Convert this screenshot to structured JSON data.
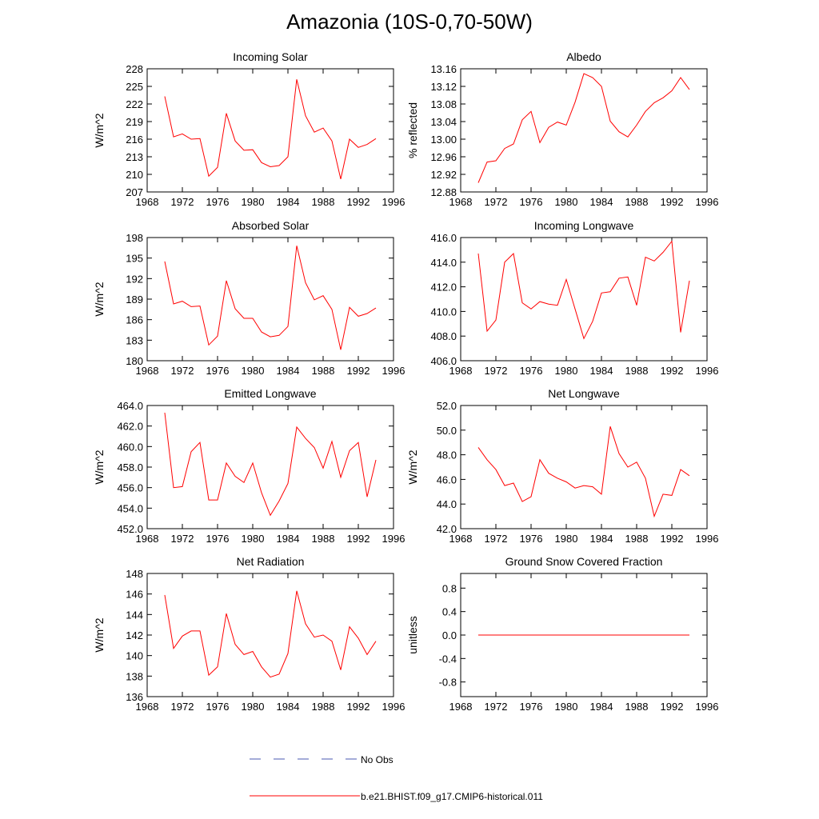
{
  "page_title": "Amazonia (10S-0,70-50W)",
  "legend": [
    {
      "label": "No Obs",
      "color": "#4a5ab0",
      "style": "dashed"
    },
    {
      "label": "b.e21.BHIST.f09_g17.CMIP6-historical.011",
      "color": "#ff0000",
      "style": "solid"
    }
  ],
  "chart_data": [
    {
      "type": "line",
      "title": "Incoming Solar",
      "ylabel": "W/m^2",
      "xlim": [
        1968,
        1996
      ],
      "xticks": [
        1968,
        1972,
        1976,
        1980,
        1984,
        1988,
        1992,
        1996
      ],
      "ylim": [
        207,
        228
      ],
      "yticks": [
        207,
        210,
        213,
        216,
        219,
        222,
        225,
        228
      ],
      "ytick_labels": [
        "207",
        "210",
        "213",
        "216",
        "219",
        "222",
        "225",
        "228"
      ],
      "x": [
        1970,
        1971,
        1972,
        1973,
        1974,
        1975,
        1976,
        1977,
        1978,
        1979,
        1980,
        1981,
        1982,
        1983,
        1984,
        1985,
        1986,
        1987,
        1988,
        1989,
        1990,
        1991,
        1992,
        1993,
        1994
      ],
      "series": [
        {
          "name": "b.e21.BHIST.f09_g17.CMIP6-historical.011",
          "color": "#ff0000",
          "values": [
            223.3,
            216.4,
            216.9,
            216.0,
            216.1,
            209.7,
            211.2,
            220.4,
            215.7,
            214.1,
            214.2,
            212.0,
            211.3,
            211.5,
            213.0,
            226.2,
            220.0,
            217.2,
            217.9,
            215.7,
            209.2,
            216.0,
            214.6,
            215.1,
            216.1
          ]
        }
      ]
    },
    {
      "type": "line",
      "title": "Albedo",
      "ylabel": "% reflected",
      "xlim": [
        1968,
        1996
      ],
      "xticks": [
        1968,
        1972,
        1976,
        1980,
        1984,
        1988,
        1992,
        1996
      ],
      "ylim": [
        12.88,
        13.16
      ],
      "yticks": [
        12.88,
        12.92,
        12.96,
        13.0,
        13.04,
        13.08,
        13.12,
        13.16
      ],
      "ytick_labels": [
        "12.88",
        "12.92",
        "12.96",
        "13.00",
        "13.04",
        "13.08",
        "13.12",
        "13.16"
      ],
      "x": [
        1970,
        1971,
        1972,
        1973,
        1974,
        1975,
        1976,
        1977,
        1978,
        1979,
        1980,
        1981,
        1982,
        1983,
        1984,
        1985,
        1986,
        1987,
        1988,
        1989,
        1990,
        1991,
        1992,
        1993,
        1994
      ],
      "series": [
        {
          "name": "b.e21.BHIST.f09_g17.CMIP6-historical.011",
          "color": "#ff0000",
          "values": [
            12.901,
            12.948,
            12.951,
            12.979,
            12.989,
            13.044,
            13.063,
            12.992,
            13.027,
            13.039,
            13.032,
            13.084,
            13.149,
            13.14,
            13.12,
            13.041,
            13.017,
            13.005,
            13.032,
            13.063,
            13.083,
            13.094,
            13.11,
            13.14,
            13.113
          ]
        }
      ]
    },
    {
      "type": "line",
      "title": "Absorbed Solar",
      "ylabel": "W/m^2",
      "xlim": [
        1968,
        1996
      ],
      "xticks": [
        1968,
        1972,
        1976,
        1980,
        1984,
        1988,
        1992,
        1996
      ],
      "ylim": [
        180,
        198
      ],
      "yticks": [
        180,
        183,
        186,
        189,
        192,
        195,
        198
      ],
      "ytick_labels": [
        "180",
        "183",
        "186",
        "189",
        "192",
        "195",
        "198"
      ],
      "x": [
        1970,
        1971,
        1972,
        1973,
        1974,
        1975,
        1976,
        1977,
        1978,
        1979,
        1980,
        1981,
        1982,
        1983,
        1984,
        1985,
        1986,
        1987,
        1988,
        1989,
        1990,
        1991,
        1992,
        1993,
        1994
      ],
      "series": [
        {
          "name": "b.e21.BHIST.f09_g17.CMIP6-historical.011",
          "color": "#ff0000",
          "values": [
            194.5,
            188.3,
            188.7,
            187.9,
            188.0,
            182.3,
            183.6,
            191.7,
            187.6,
            186.2,
            186.2,
            184.2,
            183.5,
            183.7,
            185.0,
            196.8,
            191.4,
            188.9,
            189.5,
            187.5,
            181.6,
            187.8,
            186.5,
            186.9,
            187.7
          ]
        }
      ]
    },
    {
      "type": "line",
      "title": "Incoming Longwave",
      "ylabel": "",
      "xlim": [
        1968,
        1996
      ],
      "xticks": [
        1968,
        1972,
        1976,
        1980,
        1984,
        1988,
        1992,
        1996
      ],
      "ylim": [
        406,
        416
      ],
      "yticks": [
        406,
        408,
        410,
        412,
        414,
        416
      ],
      "ytick_labels": [
        "406.0",
        "408.0",
        "410.0",
        "412.0",
        "414.0",
        "416.0"
      ],
      "x": [
        1970,
        1971,
        1972,
        1973,
        1974,
        1975,
        1976,
        1977,
        1978,
        1979,
        1980,
        1981,
        1982,
        1983,
        1984,
        1985,
        1986,
        1987,
        1988,
        1989,
        1990,
        1991,
        1992,
        1993,
        1994
      ],
      "series": [
        {
          "name": "b.e21.BHIST.f09_g17.CMIP6-historical.011",
          "color": "#ff0000",
          "values": [
            414.7,
            408.4,
            409.3,
            414.0,
            414.7,
            410.7,
            410.2,
            410.8,
            410.6,
            410.5,
            412.6,
            410.2,
            407.8,
            409.2,
            411.5,
            411.6,
            412.7,
            412.8,
            410.5,
            414.4,
            414.1,
            414.8,
            415.7,
            408.3,
            412.5
          ]
        }
      ]
    },
    {
      "type": "line",
      "title": "Emitted Longwave",
      "ylabel": "W/m^2",
      "xlim": [
        1968,
        1996
      ],
      "xticks": [
        1968,
        1972,
        1976,
        1980,
        1984,
        1988,
        1992,
        1996
      ],
      "ylim": [
        452,
        464
      ],
      "yticks": [
        452,
        454,
        456,
        458,
        460,
        462,
        464
      ],
      "ytick_labels": [
        "452.0",
        "454.0",
        "456.0",
        "458.0",
        "460.0",
        "462.0",
        "464.0"
      ],
      "x": [
        1970,
        1971,
        1972,
        1973,
        1974,
        1975,
        1976,
        1977,
        1978,
        1979,
        1980,
        1981,
        1982,
        1983,
        1984,
        1985,
        1986,
        1987,
        1988,
        1989,
        1990,
        1991,
        1992,
        1993,
        1994
      ],
      "series": [
        {
          "name": "b.e21.BHIST.f09_g17.CMIP6-historical.011",
          "color": "#ff0000",
          "values": [
            463.3,
            456.0,
            456.1,
            459.5,
            460.4,
            454.8,
            454.8,
            458.4,
            457.1,
            456.5,
            458.4,
            455.5,
            453.3,
            454.7,
            456.4,
            461.9,
            460.8,
            459.9,
            457.9,
            460.5,
            457.0,
            459.6,
            460.4,
            455.1,
            458.7
          ]
        }
      ]
    },
    {
      "type": "line",
      "title": "Net Longwave",
      "ylabel": "W/m^2",
      "xlim": [
        1968,
        1996
      ],
      "xticks": [
        1968,
        1972,
        1976,
        1980,
        1984,
        1988,
        1992,
        1996
      ],
      "ylim": [
        42,
        52
      ],
      "yticks": [
        42,
        44,
        46,
        48,
        50,
        52
      ],
      "ytick_labels": [
        "42.0",
        "44.0",
        "46.0",
        "48.0",
        "50.0",
        "52.0"
      ],
      "x": [
        1970,
        1971,
        1972,
        1973,
        1974,
        1975,
        1976,
        1977,
        1978,
        1979,
        1980,
        1981,
        1982,
        1983,
        1984,
        1985,
        1986,
        1987,
        1988,
        1989,
        1990,
        1991,
        1992,
        1993,
        1994
      ],
      "series": [
        {
          "name": "b.e21.BHIST.f09_g17.CMIP6-historical.011",
          "color": "#ff0000",
          "values": [
            48.6,
            47.6,
            46.8,
            45.5,
            45.7,
            44.2,
            44.6,
            47.6,
            46.5,
            46.1,
            45.8,
            45.3,
            45.5,
            45.4,
            44.8,
            50.3,
            48.1,
            47.0,
            47.4,
            46.1,
            43.0,
            44.8,
            44.7,
            46.8,
            46.3
          ]
        }
      ]
    },
    {
      "type": "line",
      "title": "Net Radiation",
      "ylabel": "W/m^2",
      "xlim": [
        1968,
        1996
      ],
      "xticks": [
        1968,
        1972,
        1976,
        1980,
        1984,
        1988,
        1992,
        1996
      ],
      "ylim": [
        136,
        148
      ],
      "yticks": [
        136,
        138,
        140,
        142,
        144,
        146,
        148
      ],
      "ytick_labels": [
        "136",
        "138",
        "140",
        "142",
        "144",
        "146",
        "148"
      ],
      "x": [
        1970,
        1971,
        1972,
        1973,
        1974,
        1975,
        1976,
        1977,
        1978,
        1979,
        1980,
        1981,
        1982,
        1983,
        1984,
        1985,
        1986,
        1987,
        1988,
        1989,
        1990,
        1991,
        1992,
        1993,
        1994
      ],
      "series": [
        {
          "name": "b.e21.BHIST.f09_g17.CMIP6-historical.011",
          "color": "#ff0000",
          "values": [
            145.9,
            140.7,
            141.9,
            142.4,
            142.4,
            138.1,
            138.9,
            144.1,
            141.1,
            140.1,
            140.4,
            138.9,
            137.9,
            138.2,
            140.2,
            146.3,
            143.1,
            141.8,
            142.0,
            141.4,
            138.6,
            142.8,
            141.7,
            140.1,
            141.4
          ]
        }
      ]
    },
    {
      "type": "line",
      "title": "Ground Snow Covered Fraction",
      "ylabel": "unitless",
      "xlim": [
        1968,
        1996
      ],
      "xticks": [
        1968,
        1972,
        1976,
        1980,
        1984,
        1988,
        1992,
        1996
      ],
      "ylim": [
        -1.05,
        1.05
      ],
      "yticks": [
        -0.8,
        -0.4,
        0.0,
        0.4,
        0.8
      ],
      "ytick_labels": [
        "-0.8",
        "-0.4",
        "0.0",
        "0.4",
        "0.8"
      ],
      "x": [
        1970,
        1971,
        1972,
        1973,
        1974,
        1975,
        1976,
        1977,
        1978,
        1979,
        1980,
        1981,
        1982,
        1983,
        1984,
        1985,
        1986,
        1987,
        1988,
        1989,
        1990,
        1991,
        1992,
        1993,
        1994
      ],
      "series": [
        {
          "name": "b.e21.BHIST.f09_g17.CMIP6-historical.011",
          "color": "#ff0000",
          "values": [
            0,
            0,
            0,
            0,
            0,
            0,
            0,
            0,
            0,
            0,
            0,
            0,
            0,
            0,
            0,
            0,
            0,
            0,
            0,
            0,
            0,
            0,
            0,
            0,
            0
          ]
        }
      ]
    }
  ]
}
